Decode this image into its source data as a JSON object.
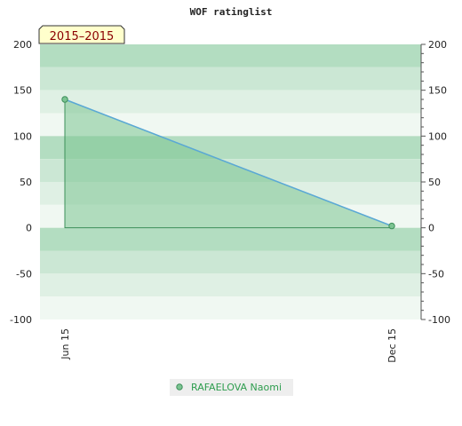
{
  "chart_data": {
    "type": "area",
    "title": "WOF ratinglist",
    "season_label": "2015–2015",
    "x_categories": [
      "Jun 15",
      "Dec 15"
    ],
    "series": [
      {
        "name": "RAFAELOVA Naomi",
        "x": [
          "Jun 15",
          "Dec 15"
        ],
        "values": [
          140,
          2
        ]
      }
    ],
    "ylim": [
      -100,
      200
    ],
    "y_ticks": [
      -100,
      -50,
      0,
      50,
      100,
      150,
      200
    ],
    "y_ticks_right": [
      -100,
      -50,
      0,
      50,
      100,
      150,
      200
    ],
    "xlabel": "",
    "ylabel": "",
    "grid": "horizontal-bands",
    "legend_position": "bottom-center",
    "colors": {
      "line": "#5aa8d6",
      "fill": "#7cc492",
      "marker": "#3d8f5a",
      "band_dark": "#b3ddc1",
      "band_mid": "#cbe7d4",
      "band_light": "#dff0e4",
      "band_lightest": "#f0f8f2",
      "legend_text": "#2e9d4e",
      "season_bg": "#ffffcc",
      "season_text": "#8b0000"
    }
  }
}
